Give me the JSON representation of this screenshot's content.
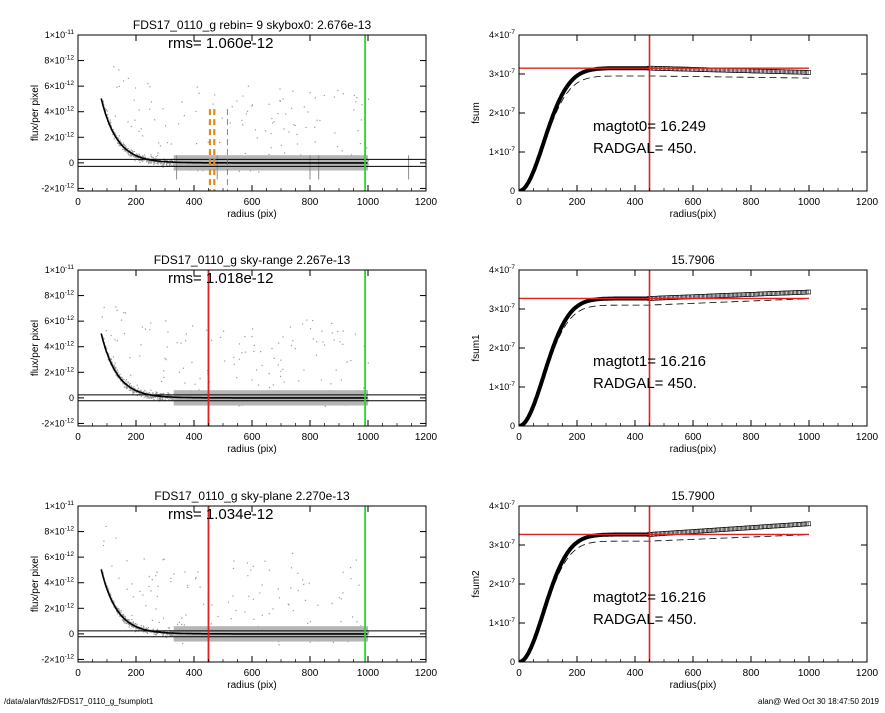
{
  "footer": {
    "path": "/data/alan/fds2/FDS17_0110_g_fsumplot1",
    "stamp": "alan@  Wed Oct 30 18:47:50 2019"
  },
  "colors": {
    "vline_green": "#22dd22",
    "vline_red": "#dd2222",
    "dashed_orange": "#e08a1e",
    "scatter_gray": "#9a9a9a"
  },
  "chart_data": [
    {
      "id": "profile0",
      "type": "scatter",
      "title": "FDS17_0110_g rebin= 9    skybox0:  2.676e-13",
      "annotation": "rms= 1.060e-12",
      "xlabel": "radius (pix)",
      "ylabel": "flux/per pixel",
      "xlim": [
        0,
        1200
      ],
      "ylim": [
        -2.2e-12,
        1e-11
      ],
      "xticks": [
        "0",
        "200",
        "400",
        "600",
        "800",
        "1000",
        "1200"
      ],
      "yticks": [
        {
          "m": "-2",
          "e": "-12",
          "v": -2e-12
        },
        {
          "m": "0",
          "e": "",
          "v": 0
        },
        {
          "m": "2",
          "e": "-12",
          "v": 2e-12
        },
        {
          "m": "4",
          "e": "-12",
          "v": 4e-12
        },
        {
          "m": "6",
          "e": "-12",
          "v": 6e-12
        },
        {
          "m": "8",
          "e": "-12",
          "v": 8e-12
        },
        {
          "m": "1",
          "e": "-11",
          "v": 1e-11
        }
      ],
      "profile_scale": 3.5e-12,
      "hlines": [
        2.7e-13,
        -2.7e-13
      ],
      "vlines": [
        {
          "x": 990,
          "color": "#22dd22",
          "style": "solid"
        }
      ],
      "dashed_orange": [
        455,
        470
      ],
      "dashed_gray": [
        515
      ],
      "gray_spikes": [
        340,
        480,
        800,
        830,
        1140
      ]
    },
    {
      "id": "growth0",
      "type": "line",
      "title": "",
      "annotation_mag": "magtot0=  16.249",
      "annotation_rad": "RADGAL=    450.",
      "xlabel": "radius(pix)",
      "ylabel": "fsum",
      "xlim": [
        0,
        1200
      ],
      "ylim": [
        0,
        4e-07
      ],
      "xticks": [
        "0",
        "200",
        "400",
        "600",
        "800",
        "1000",
        "1200"
      ],
      "yticks": [
        {
          "m": "0",
          "e": "",
          "v": 0
        },
        {
          "m": "1",
          "e": "-7",
          "v": 1e-07
        },
        {
          "m": "2",
          "e": "-7",
          "v": 2e-07
        },
        {
          "m": "3",
          "e": "-7",
          "v": 3e-07
        },
        {
          "m": "4",
          "e": "-7",
          "v": 4e-07
        }
      ],
      "curve": {
        "plateau": 3.15e-07,
        "scale": 120,
        "tail_slope": -2e-11
      },
      "dashed": {
        "plateau": 2.95e-07,
        "tail_slope": -1e-11
      },
      "hline": 3.15e-07,
      "vline": 450
    },
    {
      "id": "profile1",
      "type": "scatter",
      "title": "FDS17_0110_g sky-range  2.267e-13",
      "annotation": "rms= 1.018e-12",
      "xlabel": "radius (pix)",
      "ylabel": "flux/per pixel",
      "xlim": [
        0,
        1200
      ],
      "ylim": [
        -2.2e-12,
        1e-11
      ],
      "xticks": [
        "0",
        "200",
        "400",
        "600",
        "800",
        "1000",
        "1200"
      ],
      "yticks": [
        {
          "m": "-2",
          "e": "-12",
          "v": -2e-12
        },
        {
          "m": "0",
          "e": "",
          "v": 0
        },
        {
          "m": "2",
          "e": "-12",
          "v": 2e-12
        },
        {
          "m": "4",
          "e": "-12",
          "v": 4e-12
        },
        {
          "m": "6",
          "e": "-12",
          "v": 6e-12
        },
        {
          "m": "8",
          "e": "-12",
          "v": 8e-12
        },
        {
          "m": "1",
          "e": "-11",
          "v": 1e-11
        }
      ],
      "profile_scale": 3.5e-12,
      "hlines": [
        2.3e-13,
        -2.3e-13
      ],
      "vlines": [
        {
          "x": 450,
          "color": "#dd2222",
          "style": "solid"
        },
        {
          "x": 990,
          "color": "#22dd22",
          "style": "solid"
        }
      ],
      "dashed_orange": [],
      "dashed_gray": [],
      "gray_spikes": []
    },
    {
      "id": "growth1",
      "type": "line",
      "title": "15.7906",
      "annotation_mag": "magtot1=  16.216",
      "annotation_rad": "RADGAL=    450.",
      "xlabel": "radius(pix)",
      "ylabel": "fsum1",
      "xlim": [
        0,
        1200
      ],
      "ylim": [
        0,
        4e-07
      ],
      "xticks": [
        "0",
        "200",
        "400",
        "600",
        "800",
        "1000",
        "1200"
      ],
      "yticks": [
        {
          "m": "0",
          "e": "",
          "v": 0
        },
        {
          "m": "1",
          "e": "-7",
          "v": 1e-07
        },
        {
          "m": "2",
          "e": "-7",
          "v": 2e-07
        },
        {
          "m": "3",
          "e": "-7",
          "v": 3e-07
        },
        {
          "m": "4",
          "e": "-7",
          "v": 4e-07
        }
      ],
      "curve": {
        "plateau": 3.27e-07,
        "scale": 120,
        "tail_slope": 3e-11
      },
      "dashed": {
        "plateau": 3.1e-07,
        "tail_slope": 3e-11
      },
      "hline": 3.27e-07,
      "vline": 450
    },
    {
      "id": "profile2",
      "type": "scatter",
      "title": "FDS17_0110_g sky-plane  2.270e-13",
      "annotation": "rms= 1.034e-12",
      "xlabel": "radius (pix)",
      "ylabel": "flux/per pixel",
      "xlim": [
        0,
        1200
      ],
      "ylim": [
        -2.2e-12,
        1e-11
      ],
      "xticks": [
        "0",
        "200",
        "400",
        "600",
        "800",
        "1000",
        "1200"
      ],
      "yticks": [
        {
          "m": "-2",
          "e": "-12",
          "v": -2e-12
        },
        {
          "m": "0",
          "e": "",
          "v": 0
        },
        {
          "m": "2",
          "e": "-12",
          "v": 2e-12
        },
        {
          "m": "4",
          "e": "-12",
          "v": 4e-12
        },
        {
          "m": "6",
          "e": "-12",
          "v": 6e-12
        },
        {
          "m": "8",
          "e": "-12",
          "v": 8e-12
        },
        {
          "m": "1",
          "e": "-11",
          "v": 1e-11
        }
      ],
      "profile_scale": 3.5e-12,
      "hlines": [
        2.3e-13,
        -2.3e-13
      ],
      "vlines": [
        {
          "x": 450,
          "color": "#dd2222",
          "style": "solid"
        },
        {
          "x": 990,
          "color": "#22dd22",
          "style": "solid"
        }
      ],
      "dashed_orange": [],
      "dashed_gray": [],
      "gray_spikes": []
    },
    {
      "id": "growth2",
      "type": "line",
      "title": "15.7900",
      "annotation_mag": "magtot2=  16.216",
      "annotation_rad": "RADGAL=    450.",
      "xlabel": "radius(pix)",
      "ylabel": "fsum2",
      "xlim": [
        0,
        1200
      ],
      "ylim": [
        0,
        4e-07
      ],
      "xticks": [
        "0",
        "200",
        "400",
        "600",
        "800",
        "1000",
        "1200"
      ],
      "yticks": [
        {
          "m": "0",
          "e": "",
          "v": 0
        },
        {
          "m": "1",
          "e": "-7",
          "v": 1e-07
        },
        {
          "m": "2",
          "e": "-7",
          "v": 2e-07
        },
        {
          "m": "3",
          "e": "-7",
          "v": 3e-07
        },
        {
          "m": "4",
          "e": "-7",
          "v": 4e-07
        }
      ],
      "curve": {
        "plateau": 3.27e-07,
        "scale": 120,
        "tail_slope": 5e-11
      },
      "dashed": {
        "plateau": 3.1e-07,
        "tail_slope": 3e-11
      },
      "hline": 3.27e-07,
      "vline": 450
    }
  ]
}
